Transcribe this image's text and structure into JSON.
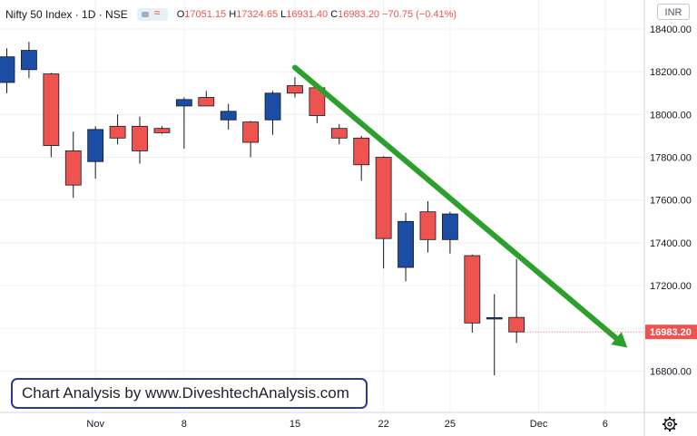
{
  "header": {
    "symbol": "Nifty 50 Index · 1D · NSE",
    "ohlc": [
      {
        "label": "O",
        "value": "17051.15"
      },
      {
        "label": "H",
        "value": "17324.65"
      },
      {
        "label": "L",
        "value": "16931.40"
      },
      {
        "label": "C",
        "value": "16983.20"
      },
      {
        "label": "",
        "value": "−70.75 (−0.41%)"
      }
    ],
    "currency": "INR"
  },
  "watermark": "Chart Analysis by www.DiveshtechAnalysis.com",
  "colors": {
    "up": "#1a4da3",
    "down": "#ef5350",
    "trend": "#2ca02c",
    "price_label_bg": "#ef5350",
    "grid": "#eef0f3"
  },
  "chart_data": {
    "type": "candlestick",
    "y_ticks": [
      "18400.00",
      "18200.00",
      "18000.00",
      "17800.00",
      "17600.00",
      "17400.00",
      "17200.00",
      "17000.00",
      "16800.00"
    ],
    "x_ticks": [
      {
        "label": "Nov",
        "index": 4
      },
      {
        "label": "8",
        "index": 8
      },
      {
        "label": "15",
        "index": 13
      },
      {
        "label": "22",
        "index": 17
      },
      {
        "label": "25",
        "index": 20
      },
      {
        "label": "Dec",
        "index": 24
      },
      {
        "label": "6",
        "index": 27
      }
    ],
    "last_price": "16983.20",
    "candles": [
      {
        "o": 18150,
        "h": 18310,
        "l": 18100,
        "c": 18270
      },
      {
        "o": 18210,
        "h": 18340,
        "l": 18170,
        "c": 18300
      },
      {
        "o": 18190,
        "h": 18195,
        "l": 17800,
        "c": 17855
      },
      {
        "o": 17830,
        "h": 17920,
        "l": 17610,
        "c": 17670
      },
      {
        "o": 17780,
        "h": 17945,
        "l": 17700,
        "c": 17930
      },
      {
        "o": 17945,
        "h": 18000,
        "l": 17860,
        "c": 17890
      },
      {
        "o": 17945,
        "h": 17990,
        "l": 17770,
        "c": 17830
      },
      {
        "o": 17935,
        "h": 17945,
        "l": 17910,
        "c": 17915
      },
      {
        "o": 18040,
        "h": 18080,
        "l": 17840,
        "c": 18070
      },
      {
        "o": 18080,
        "h": 18110,
        "l": 18040,
        "c": 18040
      },
      {
        "o": 17975,
        "h": 18050,
        "l": 17930,
        "c": 18015
      },
      {
        "o": 17965,
        "h": 17970,
        "l": 17800,
        "c": 17870
      },
      {
        "o": 17975,
        "h": 18110,
        "l": 17905,
        "c": 18100
      },
      {
        "o": 18135,
        "h": 18175,
        "l": 18080,
        "c": 18100
      },
      {
        "o": 18125,
        "h": 18130,
        "l": 17960,
        "c": 17995
      },
      {
        "o": 17935,
        "h": 17955,
        "l": 17860,
        "c": 17890
      },
      {
        "o": 17890,
        "h": 17900,
        "l": 17690,
        "c": 17765
      },
      {
        "o": 17800,
        "h": 17805,
        "l": 17280,
        "c": 17420
      },
      {
        "o": 17285,
        "h": 17540,
        "l": 17220,
        "c": 17500
      },
      {
        "o": 17545,
        "h": 17595,
        "l": 17355,
        "c": 17415
      },
      {
        "o": 17415,
        "h": 17545,
        "l": 17350,
        "c": 17535
      },
      {
        "o": 17340,
        "h": 17345,
        "l": 16980,
        "c": 17025
      },
      {
        "o": 17050,
        "h": 17160,
        "l": 16780,
        "c": 17050
      },
      {
        "o": 17051.15,
        "h": 17324.65,
        "l": 16931.4,
        "c": 16983.2
      }
    ],
    "trendline": {
      "start": {
        "index": 13,
        "price": 18220
      },
      "end": {
        "index": 28,
        "price": 16910
      }
    }
  }
}
